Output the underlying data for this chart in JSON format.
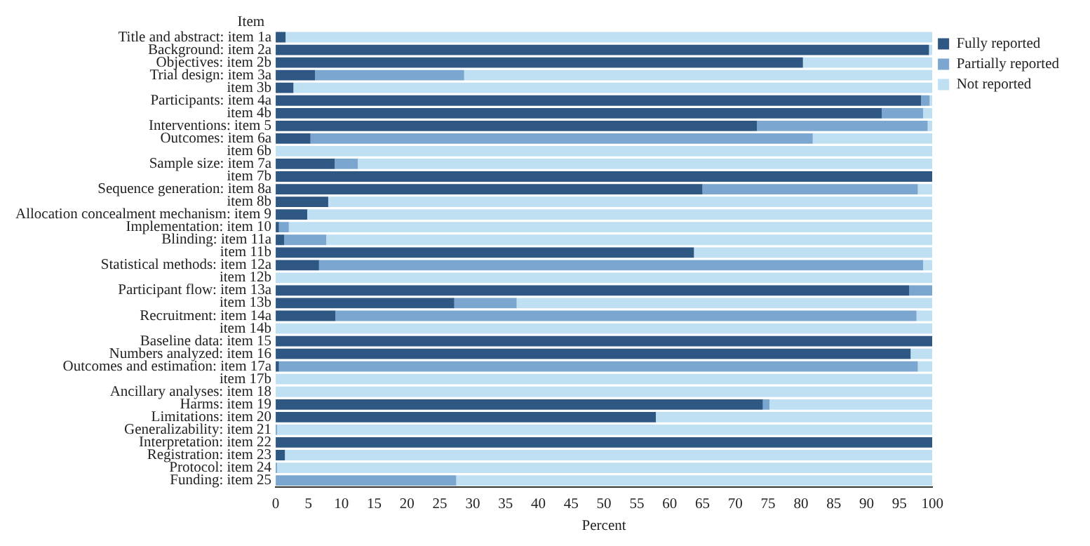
{
  "chart_data": {
    "type": "bar",
    "orientation": "horizontal",
    "stacked": true,
    "ylabel": "Item",
    "xlabel": "Percent",
    "categories": [
      "Title and abstract: item 1a",
      "Background: item 2a",
      "Objectives: item 2b",
      "Trial design: item 3a",
      "item 3b",
      "Participants: item 4a",
      "item 4b",
      "Interventions: item 5",
      "Outcomes: item 6a",
      "item 6b",
      "Sample size: item 7a",
      "item 7b",
      "Sequence generation: item 8a",
      "item 8b",
      "Allocation concealment mechanism: item 9",
      "Implementation: item 10",
      "Blinding: item 11a",
      "item 11b",
      "Statistical methods: item 12a",
      "item 12b",
      "Participant flow: item 13a",
      "item 13b",
      "Recruitment: item 14a",
      "item 14b",
      "Baseline data: item 15",
      "Numbers analyzed: item 16",
      "Outcomes and estimation: item 17a",
      "item 17b",
      "Ancillary analyses: item 18",
      "Harms: item 19",
      "Limitations: item 20",
      "Generalizability: item 21",
      "Interpretation: item 22",
      "Registration: item 23",
      "Protocol: item 24",
      "Funding: item 25"
    ],
    "series": [
      {
        "name": "Fully reported",
        "color": "#2e5783",
        "values": [
          1.5,
          99.5,
          80.3,
          6,
          2.7,
          98.3,
          92.3,
          73.3,
          5.3,
          0,
          9,
          100,
          65,
          8,
          4.8,
          0.5,
          1.3,
          63.7,
          6.6,
          0,
          96.5,
          27.2,
          9.1,
          0,
          100,
          96.7,
          0.5,
          0,
          0,
          74.2,
          57.9,
          0,
          100,
          1.4,
          0,
          0
        ]
      },
      {
        "name": "Partially reported",
        "color": "#7aa6cf",
        "values": [
          0,
          0,
          0,
          22.7,
          0,
          1.3,
          6.3,
          26,
          76.5,
          0,
          3.5,
          0,
          32.8,
          0,
          0,
          1.5,
          6.4,
          0,
          92,
          0,
          3.5,
          9.5,
          88.5,
          0,
          0,
          0,
          97.3,
          0,
          0,
          1,
          0,
          0.2,
          0,
          0,
          0.2,
          27.5
        ]
      },
      {
        "name": "Not reported",
        "color": "#bfe0f2",
        "values": [
          98.5,
          0.5,
          19.7,
          71.3,
          97.3,
          0.4,
          1.4,
          0.7,
          18.2,
          100,
          87.5,
          0,
          2.2,
          92,
          95.2,
          98,
          92.3,
          36.3,
          1.4,
          100,
          0,
          63.3,
          2.4,
          100,
          0,
          3.3,
          2.2,
          100,
          100,
          24.8,
          42.1,
          99.8,
          0,
          98.6,
          99.8,
          72.5
        ]
      }
    ],
    "xlim": [
      0,
      100
    ],
    "xticks": [
      0,
      5,
      10,
      15,
      20,
      25,
      30,
      35,
      40,
      45,
      50,
      55,
      60,
      65,
      70,
      75,
      80,
      85,
      90,
      95,
      100
    ],
    "grid": false,
    "legend": "top right"
  }
}
